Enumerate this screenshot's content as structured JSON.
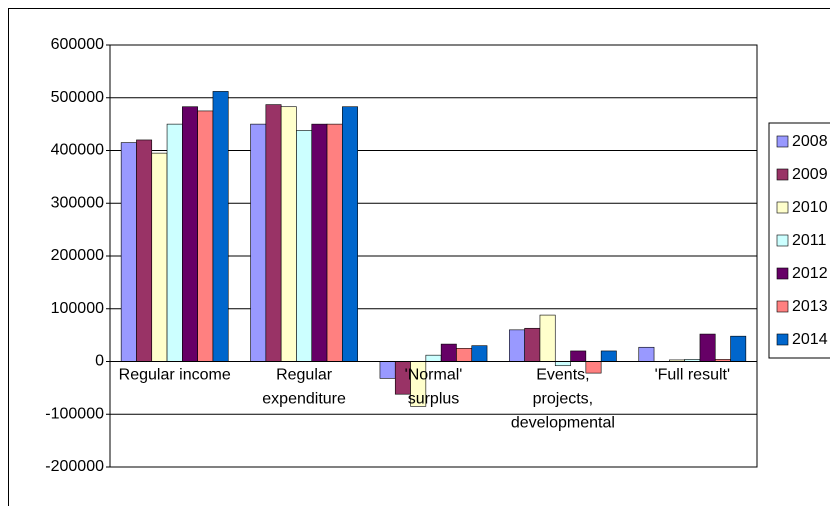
{
  "chart_data": {
    "type": "bar",
    "categories": [
      "Regular income",
      "Regular expenditure",
      "'Normal' surplus",
      "Events, projects, developmental",
      "'Full result'"
    ],
    "series": [
      {
        "name": "2008",
        "color": "#9999ff",
        "values": [
          415000,
          450000,
          -32000,
          60000,
          27000
        ]
      },
      {
        "name": "2009",
        "color": "#993366",
        "values": [
          420000,
          487000,
          -62000,
          63000,
          0
        ]
      },
      {
        "name": "2010",
        "color": "#ffffcc",
        "values": [
          395000,
          483000,
          -85000,
          88000,
          3000
        ]
      },
      {
        "name": "2011",
        "color": "#ccffff",
        "values": [
          450000,
          438000,
          12000,
          -8000,
          4000
        ]
      },
      {
        "name": "2012",
        "color": "#660066",
        "values": [
          483000,
          450000,
          33000,
          20000,
          52000
        ]
      },
      {
        "name": "2013",
        "color": "#ff8080",
        "values": [
          475000,
          450000,
          25000,
          -22000,
          4000
        ]
      },
      {
        "name": "2014",
        "color": "#0066cc",
        "values": [
          512000,
          483000,
          30000,
          20000,
          48000
        ]
      }
    ],
    "ylim": [
      -200000,
      600000
    ],
    "yticks": [
      -200000,
      -100000,
      0,
      100000,
      200000,
      300000,
      400000,
      500000,
      600000
    ],
    "grid": true,
    "legend": "right"
  }
}
